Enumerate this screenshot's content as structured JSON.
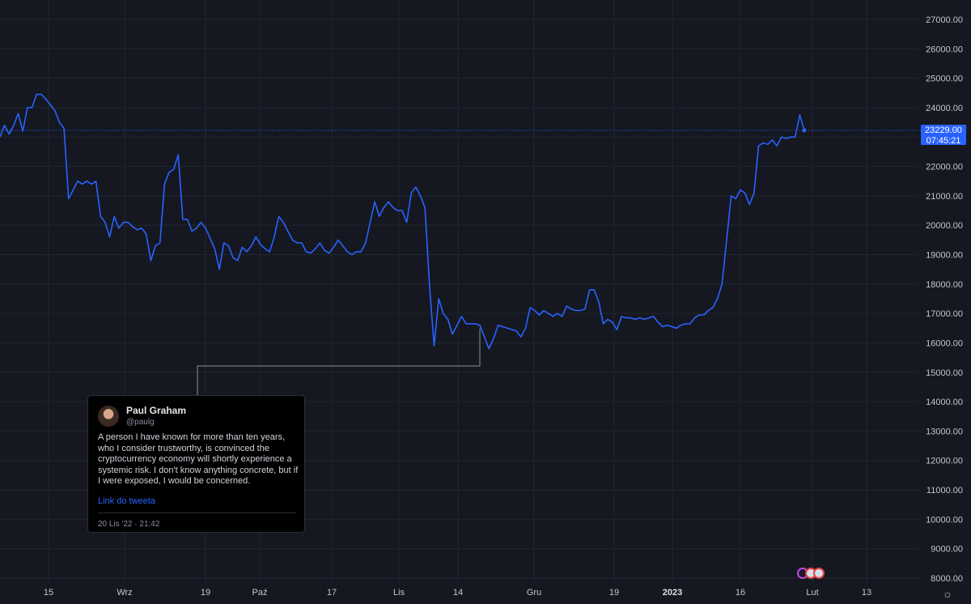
{
  "chart_data": {
    "type": "line",
    "price_ylim": [
      8000,
      27000
    ],
    "y_ticks": [
      "27000.00",
      "26000.00",
      "25000.00",
      "24000.00",
      "23000.00",
      "22000.00",
      "21000.00",
      "20000.00",
      "19000.00",
      "18000.00",
      "17000.00",
      "16000.00",
      "15000.00",
      "14000.00",
      "13000.00",
      "12000.00",
      "11000.00",
      "10000.00",
      "9000.00",
      "8000.00"
    ],
    "x_ticks": [
      {
        "label": "15",
        "bold": false
      },
      {
        "label": "Wrz",
        "bold": false
      },
      {
        "label": "19",
        "bold": false
      },
      {
        "label": "Paź",
        "bold": false
      },
      {
        "label": "17",
        "bold": false
      },
      {
        "label": "Lis",
        "bold": false
      },
      {
        "label": "14",
        "bold": false
      },
      {
        "label": "Gru",
        "bold": false
      },
      {
        "label": "19",
        "bold": false
      },
      {
        "label": "2023",
        "bold": true
      },
      {
        "label": "16",
        "bold": false
      },
      {
        "label": "Lut",
        "bold": false
      },
      {
        "label": "13",
        "bold": false
      }
    ],
    "series": [
      {
        "values": [
          23000,
          23400,
          23100,
          23400,
          23800,
          23200,
          24000,
          24000,
          24450,
          24450,
          24300,
          24100,
          23900,
          23500,
          23300,
          20900,
          21200,
          21500,
          21400,
          21500,
          21400,
          21500,
          20300,
          20100,
          19600,
          20300,
          19900,
          20100,
          20100,
          19950,
          19850,
          19900,
          19700,
          18800,
          19300,
          19400,
          21400,
          21800,
          21900,
          22400,
          20200,
          20200,
          19800,
          19900,
          20100,
          19900,
          19550,
          19200,
          18500,
          19400,
          19300,
          18900,
          18800,
          19250,
          19100,
          19300,
          19600,
          19350,
          19200,
          19100,
          19600,
          20300,
          20100,
          19800,
          19500,
          19400,
          19400,
          19100,
          19050,
          19200,
          19400,
          19150,
          19050,
          19250,
          19500,
          19300,
          19100,
          19000,
          19100,
          19100,
          19400,
          20100,
          20800,
          20300,
          20600,
          20800,
          20600,
          20500,
          20500,
          20100,
          21100,
          21300,
          21000,
          20600,
          17900,
          15900,
          17500,
          17000,
          16800,
          16300,
          16600,
          16900,
          16650,
          16650,
          16650,
          16600,
          16200,
          15800,
          16150,
          16600,
          16550,
          16500,
          16450,
          16400,
          16200,
          16500,
          17200,
          17100,
          16950,
          17100,
          17000,
          16900,
          17000,
          16900,
          17250,
          17150,
          17100,
          17100,
          17150,
          17800,
          17800,
          17400,
          16650,
          16800,
          16700,
          16450,
          16900,
          16850,
          16850,
          16800,
          16850,
          16800,
          16850,
          16900,
          16700,
          16550,
          16600,
          16550,
          16500,
          16600,
          16650,
          16650,
          16850,
          16950,
          16950,
          17100,
          17200,
          17500,
          18000,
          19500,
          21000,
          20900,
          21200,
          21100,
          20700,
          21100,
          22700,
          22800,
          22750,
          22900,
          22700,
          23000,
          22950,
          23000,
          23000,
          23750,
          23229
        ]
      }
    ],
    "last_price": "23229.00",
    "countdown": "07:45:21",
    "colors": {
      "line": "#2962ff",
      "background": "#151821",
      "grid": "#222631",
      "price_tag": "#2a62ff"
    }
  },
  "tweet": {
    "name": "Paul Graham",
    "handle": "@paulg",
    "text": "A person I have known for more than ten years, who I consider trustworthy, is convinced the cryptocurrency economy will shortly experience a systemic risk. I don't know anything concrete, but if I were exposed, I would be concerned.",
    "link": "Link do tweeta",
    "date": "20 Lis '22 · 21:42"
  },
  "icons": {
    "settings": "gear-icon",
    "event_markers": [
      "lightning-icon",
      "us-flag-icon",
      "us-flag-icon"
    ]
  }
}
